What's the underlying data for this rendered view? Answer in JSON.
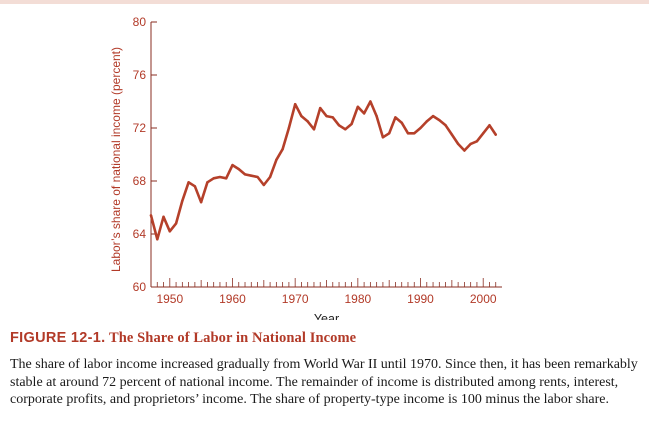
{
  "figure": {
    "label": "FIGURE 12-1.",
    "title": "The Share of Labor in National Income",
    "caption": "The share of labor income increased gradually from World War II until 1970. Since then, it has been remarkably stable at around 72 percent of national income. The remainder of income is distributed among rents, interest, corporate profits, and proprietors’ income. The share of property-type income is 100 minus the labor share."
  },
  "colors": {
    "line": "#b5402a",
    "axis": "#8a2e22",
    "tick_text": "#b23a28",
    "band": "#f3ddd6"
  },
  "chart_data": {
    "type": "line",
    "title": "",
    "xlabel": "Year",
    "ylabel": "Labor’s share of national income (percent)",
    "xlim": [
      1947,
      2003
    ],
    "ylim": [
      60,
      80
    ],
    "xticks": [
      "1950",
      "1960",
      "1970",
      "1980",
      "1990",
      "2000"
    ],
    "yticks": [
      "60",
      "64",
      "68",
      "72",
      "76",
      "80"
    ],
    "grid": false,
    "legend": "none",
    "series": [
      {
        "x": [
          1947,
          1948,
          1949,
          1950,
          1951,
          1952,
          1953,
          1954,
          1955,
          1956,
          1957,
          1958,
          1959,
          1960,
          1961,
          1962,
          1963,
          1964,
          1965,
          1966,
          1967,
          1968,
          1969,
          1970,
          1971,
          1972,
          1973,
          1974,
          1975,
          1976,
          1977,
          1978,
          1979,
          1980,
          1981,
          1982,
          1983,
          1984,
          1985,
          1986,
          1987,
          1988,
          1989,
          1990,
          1991,
          1992,
          1993,
          1994,
          1995,
          1996,
          1997,
          1998,
          1999,
          2000,
          2001,
          2002
        ],
        "values": [
          65.4,
          63.6,
          65.3,
          64.2,
          64.8,
          66.5,
          67.9,
          67.6,
          66.4,
          67.9,
          68.2,
          68.3,
          68.2,
          69.2,
          68.9,
          68.5,
          68.4,
          68.3,
          67.7,
          68.3,
          69.6,
          70.4,
          72.0,
          73.8,
          72.9,
          72.5,
          71.9,
          73.5,
          72.9,
          72.8,
          72.2,
          71.9,
          72.3,
          73.6,
          73.1,
          74.0,
          72.9,
          71.3,
          71.6,
          72.8,
          72.4,
          71.6,
          71.6,
          72.0,
          72.5,
          72.9,
          72.6,
          72.2,
          71.5,
          70.8,
          70.3,
          70.8,
          71.0,
          71.6,
          72.2,
          71.5
        ]
      }
    ]
  }
}
